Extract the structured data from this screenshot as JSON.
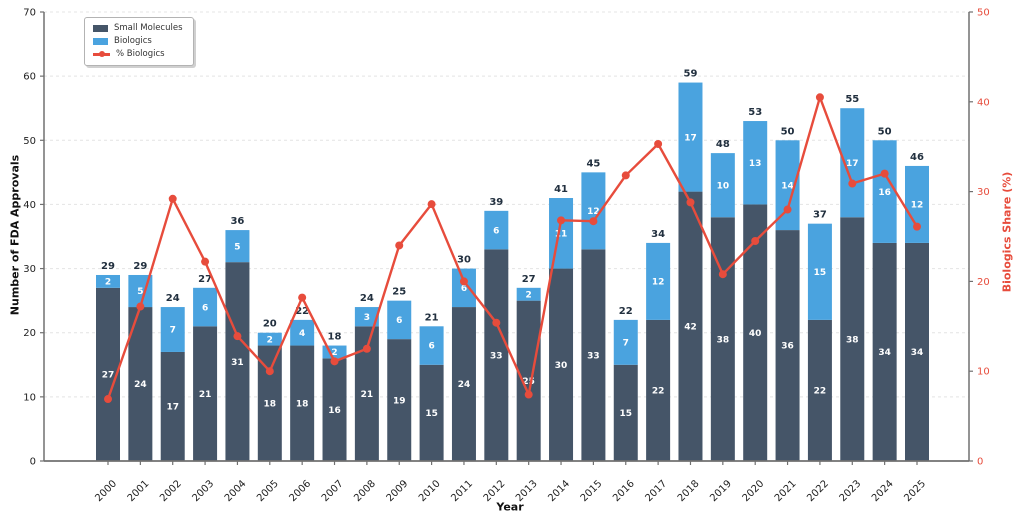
{
  "chart_data": {
    "type": "bar",
    "subtype": "stacked-bar-with-line",
    "title": "",
    "xlabel": "Year",
    "ylabel_left": "Number of FDA Approvals",
    "ylabel_right": "Biologics Share (%)",
    "categories": [
      "2000",
      "2001",
      "2002",
      "2003",
      "2004",
      "2005",
      "2006",
      "2007",
      "2008",
      "2009",
      "2010",
      "2011",
      "2012",
      "2013",
      "2014",
      "2015",
      "2016",
      "2017",
      "2018",
      "2019",
      "2020",
      "2021",
      "2022",
      "2023",
      "2024",
      "2025"
    ],
    "series": [
      {
        "name": "Small Molecules",
        "type": "bar",
        "stacked": true,
        "color": "#455568",
        "values": [
          27,
          24,
          17,
          21,
          31,
          18,
          18,
          16,
          21,
          19,
          15,
          24,
          33,
          25,
          30,
          33,
          15,
          22,
          42,
          38,
          40,
          36,
          22,
          38,
          34,
          34
        ]
      },
      {
        "name": "Biologics",
        "type": "bar",
        "stacked": true,
        "color": "#4aa3df",
        "values": [
          2,
          5,
          7,
          6,
          5,
          2,
          4,
          2,
          3,
          6,
          6,
          6,
          6,
          2,
          11,
          12,
          7,
          12,
          17,
          10,
          13,
          14,
          15,
          17,
          16,
          12
        ]
      },
      {
        "name": "% Biologics",
        "type": "line",
        "axis": "right",
        "color": "#e74c3c",
        "values": [
          6.9,
          17.2,
          29.2,
          22.2,
          13.9,
          10.0,
          18.2,
          11.1,
          12.5,
          24.0,
          28.6,
          20.0,
          15.4,
          7.4,
          26.8,
          26.7,
          31.8,
          35.3,
          28.8,
          20.8,
          24.5,
          28.0,
          40.5,
          30.9,
          32.0,
          26.1
        ]
      }
    ],
    "totals": [
      29,
      29,
      24,
      27,
      36,
      20,
      22,
      18,
      24,
      25,
      21,
      30,
      39,
      27,
      41,
      45,
      22,
      34,
      59,
      48,
      53,
      50,
      37,
      55,
      50,
      46
    ],
    "ylim_left": [
      0,
      70
    ],
    "ylim_right": [
      0,
      50
    ],
    "yticks_left": [
      0,
      10,
      20,
      30,
      40,
      50,
      60,
      70
    ],
    "yticks_right": [
      0,
      10,
      20,
      30,
      40,
      50
    ],
    "grid": "horizontal-dashed",
    "legend_position": "upper-left",
    "colors": {
      "total_label": "#22303f",
      "segment_label": "#ffffff",
      "axis_text": "#222222",
      "right_axis_text": "#e74c3c",
      "gridline": "#e4e4e4",
      "spine": "#707070",
      "background": "#ffffff"
    }
  }
}
